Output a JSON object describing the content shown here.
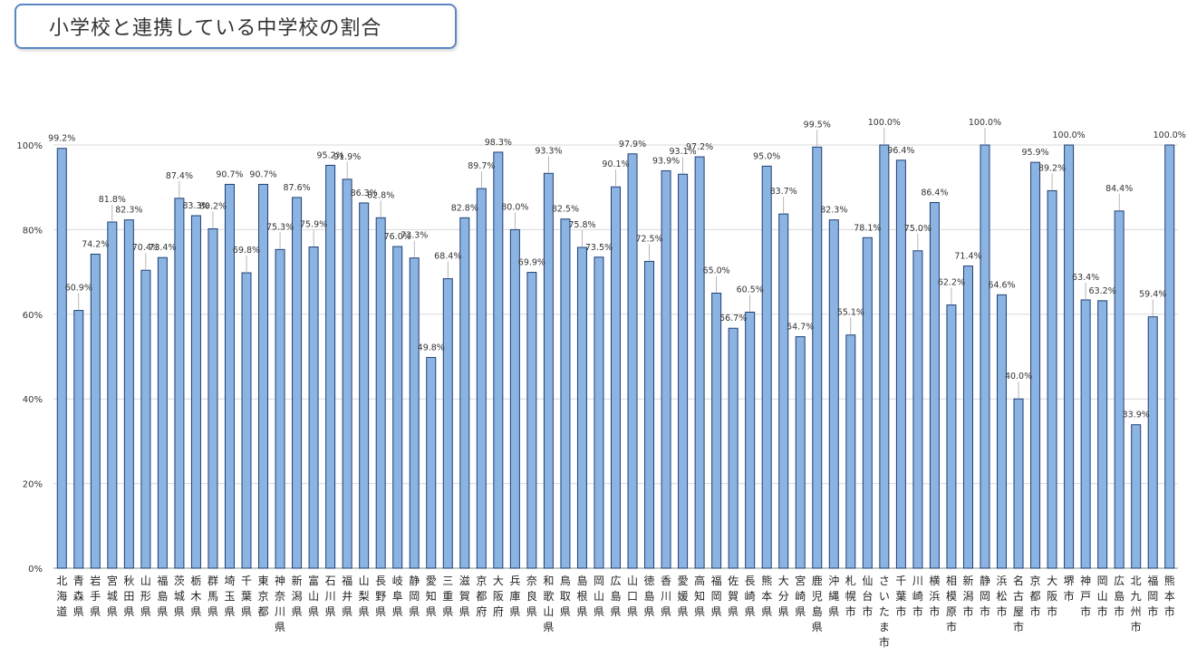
{
  "title": "小学校と連携している中学校の割合",
  "chart_data": {
    "type": "bar",
    "title": "",
    "xlabel": "",
    "ylabel": "",
    "ylim": [
      0,
      100
    ],
    "yticks": [
      "0%",
      "20%",
      "40%",
      "60%",
      "80%",
      "100%"
    ],
    "grid": true,
    "colors": {
      "bar_fill": "#8cb4e2",
      "bar_stroke": "#1f3f73",
      "grid": "#d9d9d9"
    },
    "categories": [
      "北海道",
      "青森県",
      "岩手県",
      "宮城県",
      "秋田県",
      "山形県",
      "福島県",
      "茨城県",
      "栃木県",
      "群馬県",
      "埼玉県",
      "千葉県",
      "東京都",
      "神奈川県",
      "新潟県",
      "富山県",
      "石川県",
      "福井県",
      "山梨県",
      "長野県",
      "岐阜県",
      "静岡県",
      "愛知県",
      "三重県",
      "滋賀県",
      "京都府",
      "大阪府",
      "兵庫県",
      "奈良県",
      "和歌山県",
      "鳥取県",
      "島根県",
      "岡山県",
      "広島県",
      "山口県",
      "徳島県",
      "香川県",
      "愛媛県",
      "高知県",
      "福岡県",
      "佐賀県",
      "長崎県",
      "熊本県",
      "大分県",
      "宮崎県",
      "鹿児島県",
      "沖縄県",
      "札幌市",
      "仙台市",
      "さいたま市",
      "千葉市",
      "川崎市",
      "横浜市",
      "相模原市",
      "新潟市",
      "静岡市",
      "浜松市",
      "名古屋市",
      "京都市",
      "大阪市",
      "堺市",
      "神戸市",
      "岡山市",
      "広島市",
      "北九州市",
      "福岡市",
      "熊本市"
    ],
    "values": [
      99.2,
      60.9,
      74.2,
      81.8,
      82.3,
      70.4,
      73.4,
      87.4,
      83.3,
      80.2,
      90.7,
      69.8,
      90.7,
      75.3,
      87.6,
      75.9,
      95.2,
      91.9,
      86.3,
      82.8,
      76.0,
      73.3,
      49.8,
      68.4,
      82.8,
      89.7,
      98.3,
      80.0,
      69.9,
      93.3,
      82.5,
      75.8,
      73.5,
      90.1,
      97.9,
      72.5,
      93.9,
      93.1,
      97.2,
      65.0,
      56.7,
      60.5,
      95.0,
      83.7,
      54.7,
      99.5,
      82.3,
      55.1,
      78.1,
      100.0,
      96.4,
      75.0,
      86.4,
      62.2,
      71.4,
      100.0,
      64.6,
      40.0,
      95.9,
      89.2,
      100.0,
      63.4,
      63.2,
      84.4,
      33.9,
      59.4,
      100.0
    ],
    "labels": [
      "99.2%",
      "60.9%",
      "74.2%",
      "81.8%",
      "82.3%",
      "70.4%",
      "73.4%",
      "87.4%",
      "83.3%",
      "80.2%",
      "90.7%",
      "69.8%",
      "90.7%",
      "75.3%",
      "87.6%",
      "75.9%",
      "95.2%",
      "91.9%",
      "86.3%",
      "82.8%",
      "76.0%",
      "73.3%",
      "49.8%",
      "68.4%",
      "82.8%",
      "89.7%",
      "98.3%",
      "80.0%",
      "69.9%",
      "93.3%",
      "82.5%",
      "75.8%",
      "73.5%",
      "90.1%",
      "97.9%",
      "72.5%",
      "93.9%",
      "93.1%",
      "97.2%",
      "65.0%",
      "56.7%",
      "60.5%",
      "95.0%",
      "83.7%",
      "54.7%",
      "99.5%",
      "82.3%",
      "55.1%",
      "78.1%",
      "100.0%",
      "96.4%",
      "75.0%",
      "86.4%",
      "62.2%",
      "71.4%",
      "100.0%",
      "64.6%",
      "40.0%",
      "95.9%",
      "89.2%",
      "100.0%",
      "63.4%",
      "63.2%",
      "84.4%",
      "33.9%",
      "59.4%",
      "100.0%"
    ]
  }
}
